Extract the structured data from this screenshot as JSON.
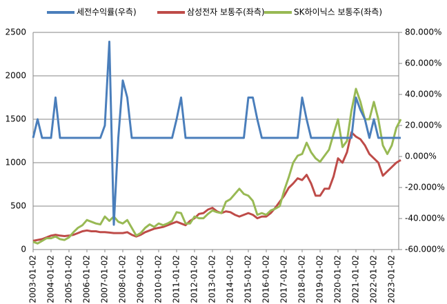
{
  "chart_data": {
    "type": "line",
    "categories": [
      "2003-01-02",
      null,
      null,
      null,
      "2004-01-02",
      null,
      null,
      null,
      "2005-01-02",
      null,
      null,
      null,
      "2006-01-02",
      null,
      null,
      null,
      "2007-01-02",
      null,
      null,
      null,
      "2008-01-02",
      null,
      null,
      null,
      "2009-01-02",
      null,
      null,
      null,
      "2010-01-02",
      null,
      null,
      null,
      "2011-01-02",
      null,
      null,
      null,
      "2012-01-02",
      null,
      null,
      null,
      "2013-01-02",
      null,
      null,
      null,
      "2014-01-02",
      null,
      null,
      null,
      "2015-01-02",
      null,
      null,
      null,
      "2016-01-02",
      null,
      null,
      null,
      "2017-01-02",
      null,
      null,
      null,
      "2018-01-02",
      null,
      null,
      null,
      "2019-01-02",
      null,
      null,
      null,
      "2020-01-02",
      null,
      null,
      null,
      "2021-01-02",
      null,
      null,
      null,
      "2022-01-02",
      null,
      null,
      null,
      "2023-01-02",
      null,
      null
    ],
    "series": [
      {
        "name": "세전수익률(우측)",
        "color": "#4a7ebb",
        "axis": "y2",
        "values": [
          12,
          24,
          12,
          12,
          12,
          38,
          12,
          12,
          12,
          12,
          12,
          12,
          12,
          12,
          12,
          12,
          20,
          74,
          -44,
          12,
          49,
          38,
          12,
          12,
          12,
          12,
          12,
          12,
          12,
          12,
          12,
          12,
          24,
          38,
          12,
          12,
          12,
          12,
          12,
          12,
          12,
          12,
          12,
          12,
          12,
          12,
          12,
          12,
          38,
          38,
          24,
          12,
          12,
          12,
          12,
          12,
          12,
          12,
          12,
          12,
          38,
          24,
          12,
          12,
          12,
          12,
          12,
          12,
          12,
          12,
          12,
          12,
          38,
          30,
          24,
          12,
          24,
          12,
          12,
          12,
          12,
          12,
          12
        ]
      },
      {
        "name": "삼성전자 보통주(좌측)",
        "color": "#be4b48",
        "values": [
          100,
          110,
          120,
          140,
          160,
          170,
          160,
          155,
          160,
          170,
          190,
          210,
          220,
          210,
          210,
          200,
          200,
          195,
          190,
          190,
          190,
          200,
          170,
          150,
          170,
          200,
          220,
          240,
          250,
          260,
          280,
          300,
          320,
          300,
          280,
          330,
          360,
          410,
          420,
          460,
          480,
          440,
          420,
          440,
          430,
          400,
          380,
          400,
          420,
          400,
          360,
          380,
          380,
          420,
          480,
          550,
          620,
          710,
          760,
          820,
          800,
          860,
          760,
          620,
          620,
          700,
          700,
          840,
          1050,
          1000,
          1120,
          1350,
          1300,
          1270,
          1200,
          1100,
          1050,
          1000,
          850,
          900,
          950,
          1000,
          1030
        ]
      },
      {
        "name": "SK하이닉스 보통주(좌측)",
        "color": "#98b954",
        "values": [
          90,
          70,
          100,
          130,
          130,
          150,
          120,
          110,
          140,
          200,
          250,
          280,
          340,
          320,
          300,
          290,
          380,
          330,
          380,
          320,
          300,
          340,
          250,
          160,
          190,
          250,
          290,
          260,
          300,
          280,
          300,
          330,
          430,
          420,
          300,
          300,
          380,
          360,
          360,
          410,
          450,
          430,
          420,
          550,
          580,
          640,
          700,
          640,
          620,
          560,
          400,
          420,
          400,
          450,
          470,
          500,
          680,
          830,
          1000,
          1080,
          1100,
          1230,
          1120,
          1050,
          1010,
          1080,
          1150,
          1330,
          1500,
          1180,
          1250,
          1600,
          1850,
          1700,
          1500,
          1500,
          1700,
          1500,
          1200,
          1100,
          1200,
          1400,
          1500
        ]
      }
    ],
    "ylim": [
      0,
      2500
    ],
    "yticks": [
      0,
      500,
      1000,
      1500,
      2000,
      2500
    ],
    "y2lim": [
      -60,
      80
    ],
    "y2ticks": [
      {
        "value": -60,
        "label": "-60.000%"
      },
      {
        "value": -40,
        "label": "-40.000%"
      },
      {
        "value": -20,
        "label": "-20.000%"
      },
      {
        "value": 0,
        "label": "0.000%"
      },
      {
        "value": 20,
        "label": "20.000%"
      },
      {
        "value": 40,
        "label": "40.000%"
      },
      {
        "value": 60,
        "label": "60.000%"
      },
      {
        "value": 80,
        "label": "80.000%"
      }
    ],
    "grid": true,
    "legend": "top"
  }
}
